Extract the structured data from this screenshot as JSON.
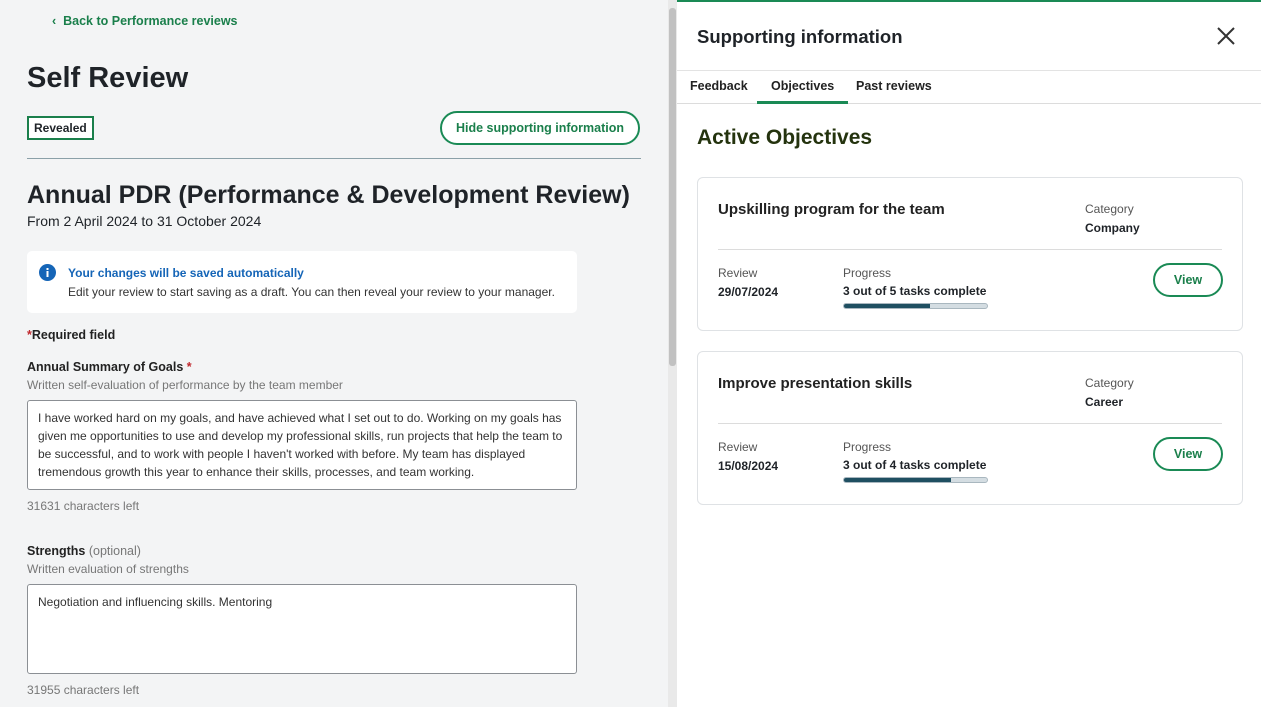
{
  "back_link": "Back to Performance reviews",
  "page_title": "Self Review",
  "status": "Revealed",
  "toggle_button": "Hide supporting information",
  "review": {
    "title": "Annual PDR (Performance & Development Review)",
    "period": "From 2 April 2024 to 31 October 2024"
  },
  "notice": {
    "title": "Your changes will be saved automatically",
    "text": "Edit your review to start saving as a draft. You can then reveal your review to your manager."
  },
  "required_note": {
    "marker": "*",
    "text": "Required field"
  },
  "fields": [
    {
      "label": "Annual Summary of Goals",
      "marker": "*",
      "hint": "Written self-evaluation of performance by the team member",
      "value": "I have worked hard on my goals, and have achieved what I set out to do. Working on my goals has given me opportunities to use and develop my professional skills, run projects that help the team to be successful, and to work with people I haven't worked with before. My team has displayed tremendous growth this year to enhance their skills, processes, and team working.",
      "counter": "31631 characters left"
    },
    {
      "label": "Strengths",
      "marker": "(optional)",
      "hint": "Written evaluation of strengths",
      "value": "Negotiation and influencing skills. Mentoring",
      "counter": "31955 characters left"
    }
  ],
  "panel": {
    "title": "Supporting information",
    "tabs": [
      "Feedback",
      "Objectives",
      "Past reviews"
    ],
    "active_tab": 1,
    "heading": "Active Objectives",
    "objectives": [
      {
        "title": "Upskilling program for the team",
        "category_label": "Category",
        "category": "Company",
        "review_label": "Review",
        "review_date": "29/07/2024",
        "progress_label": "Progress",
        "progress": {
          "completed": 3,
          "total": 5,
          "label": "3 out of 5 tasks complete"
        },
        "action": "View"
      },
      {
        "title": "Improve presentation skills",
        "category_label": "Category",
        "category": "Career",
        "review_label": "Review",
        "review_date": "15/08/2024",
        "progress_label": "Progress",
        "progress": {
          "completed": 3,
          "total": 4,
          "label": "3 out of 4 tasks complete"
        },
        "action": "View"
      }
    ]
  }
}
